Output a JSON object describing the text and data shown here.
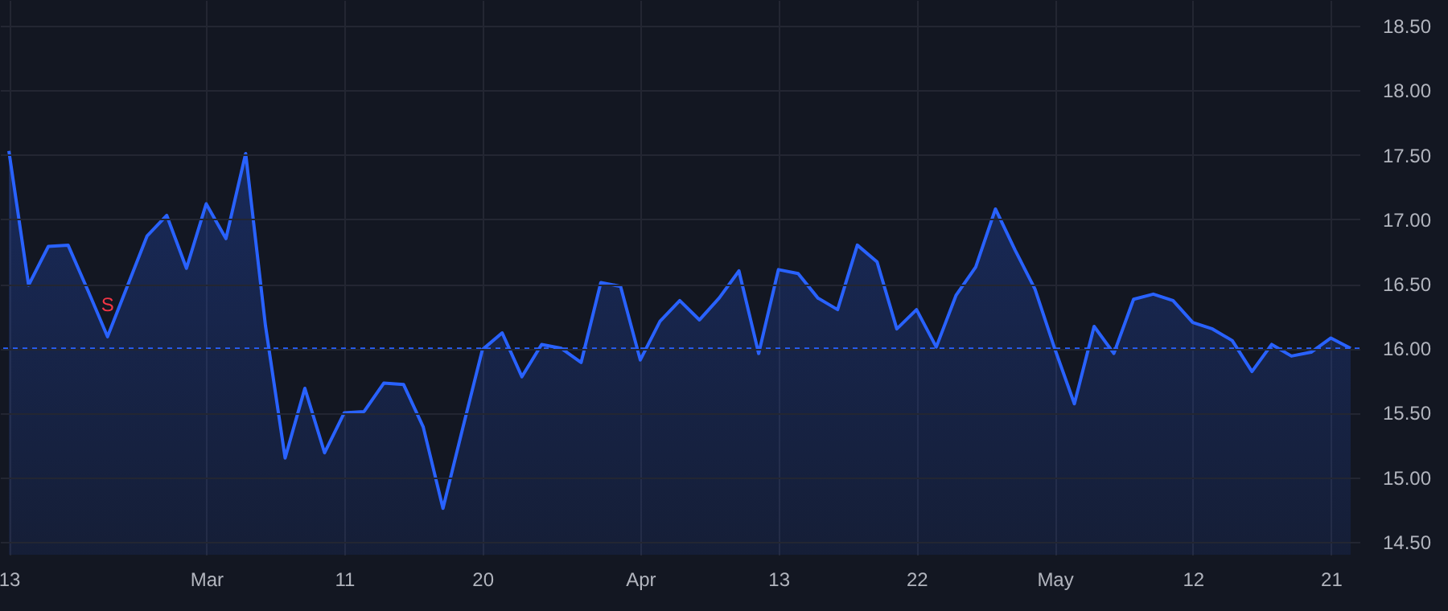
{
  "chart_data": {
    "type": "area",
    "categories": [
      "13",
      null,
      null,
      null,
      null,
      null,
      null,
      null,
      null,
      null,
      "Mar",
      null,
      null,
      null,
      null,
      null,
      null,
      "11",
      null,
      null,
      null,
      null,
      null,
      null,
      "20",
      null,
      null,
      null,
      null,
      null,
      null,
      null,
      "Apr",
      null,
      null,
      null,
      null,
      null,
      null,
      "13",
      null,
      null,
      null,
      null,
      null,
      null,
      "22",
      null,
      null,
      null,
      null,
      null,
      null,
      "May",
      null,
      null,
      null,
      null,
      null,
      null,
      "12",
      null,
      null,
      null,
      null,
      null,
      null,
      "21",
      null
    ],
    "series": [
      {
        "color": "#2962ff",
        "values": [
          17.53,
          16.49,
          16.79,
          16.8,
          16.45,
          16.09,
          16.48,
          16.87,
          17.03,
          16.62,
          17.12,
          16.85,
          17.51,
          16.18,
          15.15,
          15.69,
          15.19,
          15.5,
          15.51,
          15.73,
          15.72,
          15.39,
          14.76,
          15.38,
          15.99,
          16.12,
          15.78,
          16.03,
          16.0,
          15.89,
          16.51,
          16.48,
          15.91,
          16.21,
          16.37,
          16.22,
          16.39,
          16.6,
          15.96,
          16.61,
          16.58,
          16.39,
          16.3,
          16.8,
          16.67,
          16.15,
          16.3,
          16.01,
          16.41,
          16.63,
          17.08,
          16.76,
          16.46,
          16.0,
          15.57,
          16.17,
          15.96,
          16.38,
          16.42,
          16.37,
          16.2,
          16.15,
          16.06,
          15.82,
          16.03,
          15.94,
          15.97,
          16.08,
          16.0
        ]
      }
    ],
    "ylim": [
      14.4,
      18.7
    ],
    "yticks": [
      {
        "value": 14.5,
        "label": "14.50"
      },
      {
        "value": 15,
        "label": "15.00"
      },
      {
        "value": 15.5,
        "label": "15.50"
      },
      {
        "value": 16,
        "label": "16.00"
      },
      {
        "value": 16.5,
        "label": "16.50"
      },
      {
        "value": 17,
        "label": "17.00"
      },
      {
        "value": 17.5,
        "label": "17.50"
      },
      {
        "value": 18,
        "label": "18.00"
      },
      {
        "value": 18.5,
        "label": "18.50"
      }
    ],
    "ref_lines": [
      {
        "axis": "y",
        "value": 16,
        "color": "#2962ff",
        "line_style": "dashed"
      }
    ],
    "annotations": [
      {
        "text": "S",
        "y": 16.09
      }
    ],
    "grid": true
  }
}
